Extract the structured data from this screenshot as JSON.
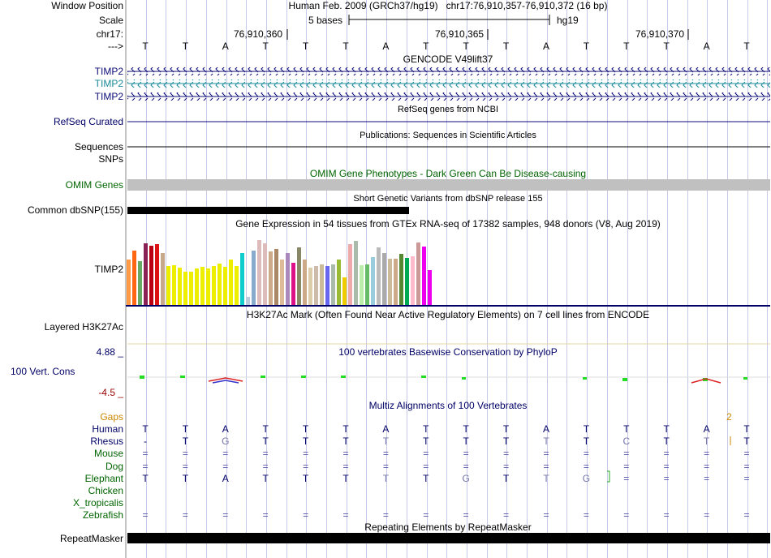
{
  "header": {
    "window_position_label": "Window Position",
    "window_position_value": "Human Feb. 2009 (GRCh37/hg19)   chr17:76,910,357-76,910,372 (16 bp)",
    "scale_label": "Scale",
    "scale_value": "5 bases",
    "scale_assembly": "hg19",
    "chrom_label": "chr17:",
    "coord_1": "76,910,360",
    "coord_2": "76,910,365",
    "coord_3": "76,910,370",
    "strand_label": "--->",
    "bases": [
      "T",
      "T",
      "A",
      "T",
      "T",
      "T",
      "A",
      "T",
      "T",
      "T",
      "A",
      "T",
      "T",
      "T",
      "A",
      "T"
    ]
  },
  "tracks": {
    "gencode_title": "GENCODE V49lift37",
    "gencode_rows": [
      {
        "label": "TIMP2",
        "color": "#0c0c78"
      },
      {
        "label": "TIMP2",
        "color": "#1a8a9a"
      },
      {
        "label": "TIMP2",
        "color": "#0c0c78"
      }
    ],
    "refseq_title": "RefSeq genes from NCBI",
    "refseq_label": "RefSeq Curated",
    "publications_title": "Publications: Sequences in Scientific Articles",
    "sequences_label": "Sequences",
    "snps_label": "SNPs",
    "omim_title": "OMIM Gene Phenotypes - Dark Green Can Be Disease-causing",
    "omim_label": "OMIM Genes",
    "dbsnp_title": "Short Genetic Variants from dbSNP release 155",
    "dbsnp_label": "Common dbSNP(155)",
    "gtex_title": "Gene Expression in 54 tissues from GTEx RNA-seq of 17382 samples, 948 donors (V8, Aug 2019)",
    "gtex_label": "TIMP2",
    "h3k27_title": "H3K27Ac Mark (Often Found Near Active Regulatory Elements) on 7 cell lines from ENCODE",
    "h3k27_label": "Layered H3K27Ac",
    "phylop_max": "4.88 _",
    "phylop_title": "100 vertebrates Basewise Conservation by PhyloP",
    "phylop_label": "100 Vert. Cons",
    "phylop_min": "-4.5 _",
    "multiz_title": "Multiz Alignments of 100 Vertebrates",
    "gaps_label": "Gaps",
    "gaps_value": "2",
    "repeat_title": "Repeating Elements by RepeatMasker",
    "repeat_label": "RepeatMasker"
  },
  "gtex_values": [
    0.59,
    0.7,
    0.57,
    0.8,
    0.77,
    0.79,
    0.67,
    0.51,
    0.52,
    0.48,
    0.43,
    0.43,
    0.47,
    0.49,
    0.47,
    0.51,
    0.54,
    0.49,
    0.59,
    0.5,
    0.67,
    0.11,
    0.71,
    0.84,
    0.8,
    0.69,
    0.73,
    0.59,
    0.67,
    0.55,
    0.75,
    0.59,
    0.48,
    0.5,
    0.53,
    0.5,
    0.53,
    0.59,
    0.36,
    0.79,
    0.83,
    0.52,
    0.53,
    0.62,
    0.75,
    0.67,
    0.6,
    0.6,
    0.66,
    0.61,
    0.63,
    0.81,
    0.76,
    0.45
  ],
  "gtex_colors": [
    "#ff9944",
    "#ff6611",
    "#66aa66",
    "#882255",
    "#bb0011",
    "#dd1111",
    "#c8a88a",
    "#eeee00",
    "#eeee00",
    "#eeee00",
    "#eeee00",
    "#eeee00",
    "#eeee00",
    "#eeee00",
    "#eeee00",
    "#eeee00",
    "#eeee00",
    "#eeee00",
    "#eeee00",
    "#eeee00",
    "#11cccc",
    "#bbccdd",
    "#88aacc",
    "#ddbbbb",
    "#ddbbbb",
    "#ccaa88",
    "#aa8866",
    "#ddbb99",
    "#aa88bb",
    "#dd1188",
    "#888866",
    "#ccaa88",
    "#ddccaa",
    "#ccbbaa",
    "#ccbb99",
    "#6666ee",
    "#aabbaa",
    "#99bb33",
    "#eecc00",
    "#eeaaaa",
    "#aabbaa",
    "#bbeeaa",
    "#66bb66",
    "#99ccdd",
    "#bbbbbb",
    "#aaaaaa",
    "#ccbb99",
    "#ccaa88",
    "#558833",
    "#00aa55",
    "#ffbbcc",
    "#cc9999",
    "#ee00ee",
    "#ee00ee"
  ],
  "alignment": {
    "species": [
      {
        "name": "Human",
        "color": "#000066",
        "bases": [
          "T",
          "T",
          "A",
          "T",
          "T",
          "T",
          "A",
          "T",
          "T",
          "T",
          "A",
          "T",
          "T",
          "T",
          "A",
          "T"
        ]
      },
      {
        "name": "Rhesus",
        "color": "#000066",
        "bases": [
          "-",
          "T",
          "G",
          "T",
          "T",
          "T",
          "T",
          "T",
          "T",
          "T",
          "T",
          "T",
          "C",
          "T",
          "T",
          "T"
        ]
      },
      {
        "name": "Mouse",
        "color": "#006400",
        "bases": [
          "=",
          "=",
          "=",
          "=",
          "=",
          "=",
          "=",
          "=",
          "=",
          "=",
          "=",
          "=",
          "=",
          "=",
          "=",
          "="
        ]
      },
      {
        "name": "Dog",
        "color": "#006400",
        "bases": [
          "=",
          "=",
          "=",
          "=",
          "=",
          "=",
          "=",
          "=",
          "=",
          "=",
          "=",
          "=",
          "=",
          "=",
          "=",
          "="
        ]
      },
      {
        "name": "Elephant",
        "color": "#006400",
        "bases": [
          "T",
          "T",
          "A",
          "T",
          "T",
          "T",
          "T",
          "T",
          "G",
          "T",
          "T",
          "G",
          "=",
          "=",
          "=",
          "="
        ]
      },
      {
        "name": "Chicken",
        "color": "#006400",
        "bases": [
          "",
          "",
          "",
          "",
          "",
          "",
          "",
          "",
          "",
          "",
          "",
          "",
          "",
          "",
          "",
          ""
        ]
      },
      {
        "name": "X_tropicalis",
        "color": "#006400",
        "bases": [
          "",
          "",
          "",
          "",
          "",
          "",
          "",
          "",
          "",
          "",
          "",
          "",
          "",
          "",
          "",
          ""
        ]
      },
      {
        "name": "Zebrafish",
        "color": "#006400",
        "bases": [
          "=",
          "=",
          "=",
          "=",
          "=",
          "=",
          "=",
          "=",
          "=",
          "=",
          "=",
          "=",
          "=",
          "=",
          "=",
          "="
        ]
      }
    ]
  }
}
